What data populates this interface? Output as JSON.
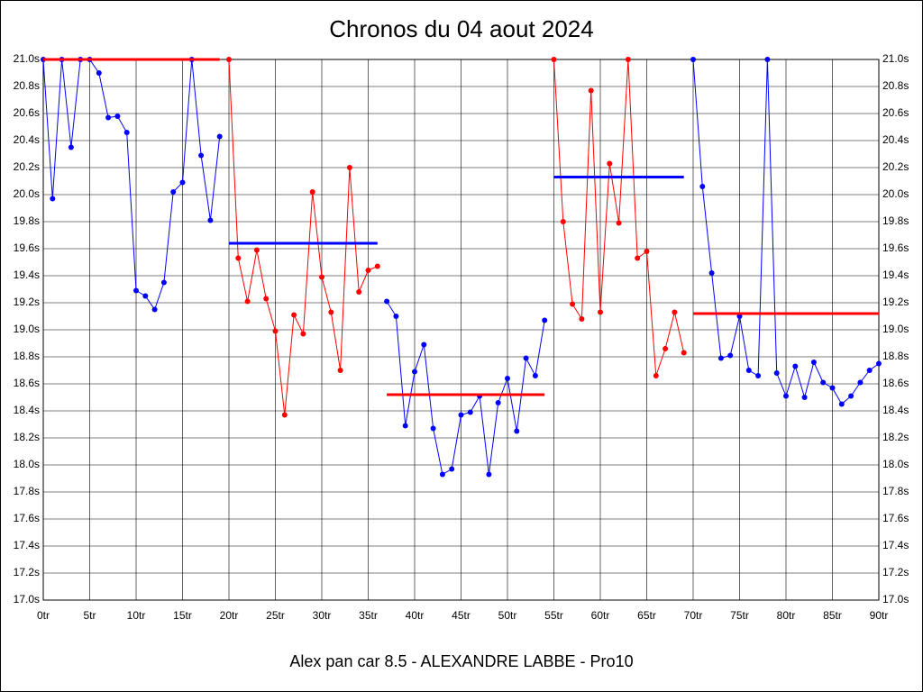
{
  "chart_data": {
    "type": "line",
    "title": "Chronos du 04 aout 2024",
    "x_label": "Alex pan car 8.5 - ALEXANDRE LABBE - Pro10",
    "xlim": [
      0,
      90
    ],
    "ylim": [
      17.0,
      21.0
    ],
    "grid": true,
    "xticks": [
      {
        "value": 0,
        "label": "0tr"
      },
      {
        "value": 5,
        "label": "5tr"
      },
      {
        "value": 10,
        "label": "10tr"
      },
      {
        "value": 15,
        "label": "15tr"
      },
      {
        "value": 20,
        "label": "20tr"
      },
      {
        "value": 25,
        "label": "25tr"
      },
      {
        "value": 30,
        "label": "30tr"
      },
      {
        "value": 35,
        "label": "35tr"
      },
      {
        "value": 40,
        "label": "40tr"
      },
      {
        "value": 45,
        "label": "45tr"
      },
      {
        "value": 50,
        "label": "50tr"
      },
      {
        "value": 55,
        "label": "55tr"
      },
      {
        "value": 60,
        "label": "60tr"
      },
      {
        "value": 65,
        "label": "65tr"
      },
      {
        "value": 70,
        "label": "70tr"
      },
      {
        "value": 75,
        "label": "75tr"
      },
      {
        "value": 80,
        "label": "80tr"
      },
      {
        "value": 85,
        "label": "85tr"
      },
      {
        "value": 90,
        "label": "90tr"
      }
    ],
    "yticks": [
      {
        "value": 17.0,
        "label": "17.0s"
      },
      {
        "value": 17.2,
        "label": "17.2s"
      },
      {
        "value": 17.4,
        "label": "17.4s"
      },
      {
        "value": 17.6,
        "label": "17.6s"
      },
      {
        "value": 17.8,
        "label": "17.8s"
      },
      {
        "value": 18.0,
        "label": "18.0s"
      },
      {
        "value": 18.2,
        "label": "18.2s"
      },
      {
        "value": 18.4,
        "label": "18.4s"
      },
      {
        "value": 18.6,
        "label": "18.6s"
      },
      {
        "value": 18.8,
        "label": "18.8s"
      },
      {
        "value": 19.0,
        "label": "19.0s"
      },
      {
        "value": 19.2,
        "label": "19.2s"
      },
      {
        "value": 19.4,
        "label": "19.4s"
      },
      {
        "value": 19.6,
        "label": "19.6s"
      },
      {
        "value": 19.8,
        "label": "19.8s"
      },
      {
        "value": 20.0,
        "label": "20.0s"
      },
      {
        "value": 20.2,
        "label": "20.2s"
      },
      {
        "value": 20.4,
        "label": "20.4s"
      },
      {
        "value": 20.6,
        "label": "20.6s"
      },
      {
        "value": 20.8,
        "label": "20.8s"
      },
      {
        "value": 21.0,
        "label": "21.0s"
      }
    ],
    "series": [
      {
        "color": "#0000ff",
        "x": [
          0,
          1,
          2,
          3,
          4,
          5,
          6,
          7,
          8,
          9,
          10,
          11,
          12,
          13,
          14,
          15,
          16,
          17,
          18,
          19
        ],
        "values": [
          21.0,
          19.97,
          21.0,
          20.35,
          21.0,
          21.0,
          20.9,
          20.57,
          20.58,
          20.46,
          19.29,
          19.25,
          19.15,
          19.35,
          20.02,
          20.09,
          21.0,
          20.29,
          19.81,
          20.43
        ]
      },
      {
        "color": "#ff0000",
        "x": [
          20,
          21,
          22,
          23,
          24,
          25,
          26,
          27,
          28,
          29,
          30,
          31,
          32,
          33,
          34,
          35,
          36
        ],
        "values": [
          21.0,
          19.53,
          19.21,
          19.59,
          19.23,
          18.99,
          18.37,
          19.11,
          18.97,
          20.02,
          19.39,
          19.13,
          18.7,
          20.2,
          19.28,
          19.44,
          19.47
        ]
      },
      {
        "color": "#0000ff",
        "x": [
          37,
          38,
          39,
          40,
          41,
          42,
          43,
          44,
          45,
          46,
          47,
          48,
          49,
          50,
          51,
          52,
          53,
          54
        ],
        "values": [
          19.21,
          19.1,
          18.29,
          18.69,
          18.89,
          18.27,
          17.93,
          17.97,
          18.37,
          18.39,
          18.51,
          17.93,
          18.46,
          18.64,
          18.25,
          18.79,
          18.66,
          19.07
        ]
      },
      {
        "color": "#ff0000",
        "x": [
          55,
          56,
          57,
          58,
          59,
          60,
          61,
          62,
          63,
          64,
          65,
          66,
          67,
          68,
          69
        ],
        "values": [
          21.0,
          19.8,
          19.19,
          19.08,
          20.77,
          19.13,
          20.23,
          19.79,
          21.0,
          19.53,
          19.58,
          18.66,
          18.86,
          19.13,
          18.83
        ]
      },
      {
        "color": "#0000ff",
        "x": [
          70,
          71,
          72,
          73,
          74,
          75,
          76,
          77,
          78,
          79,
          80,
          81,
          82,
          83,
          84,
          85,
          86,
          87,
          88,
          89,
          90
        ],
        "values": [
          21.0,
          20.06,
          19.42,
          18.79,
          18.81,
          19.1,
          18.7,
          18.66,
          21.0,
          18.68,
          18.51,
          18.73,
          18.5,
          18.76,
          18.61,
          18.57,
          18.45,
          18.51,
          18.61,
          18.7,
          18.75
        ]
      }
    ],
    "averages": [
      {
        "color": "#ff0000",
        "x": [
          0,
          19
        ],
        "value": 21.0
      },
      {
        "color": "#0000ff",
        "x": [
          20,
          36
        ],
        "value": 19.64
      },
      {
        "color": "#ff0000",
        "x": [
          37,
          54
        ],
        "value": 18.52
      },
      {
        "color": "#0000ff",
        "x": [
          55,
          69
        ],
        "value": 20.13
      },
      {
        "color": "#ff0000",
        "x": [
          70,
          90
        ],
        "value": 19.12
      }
    ]
  }
}
